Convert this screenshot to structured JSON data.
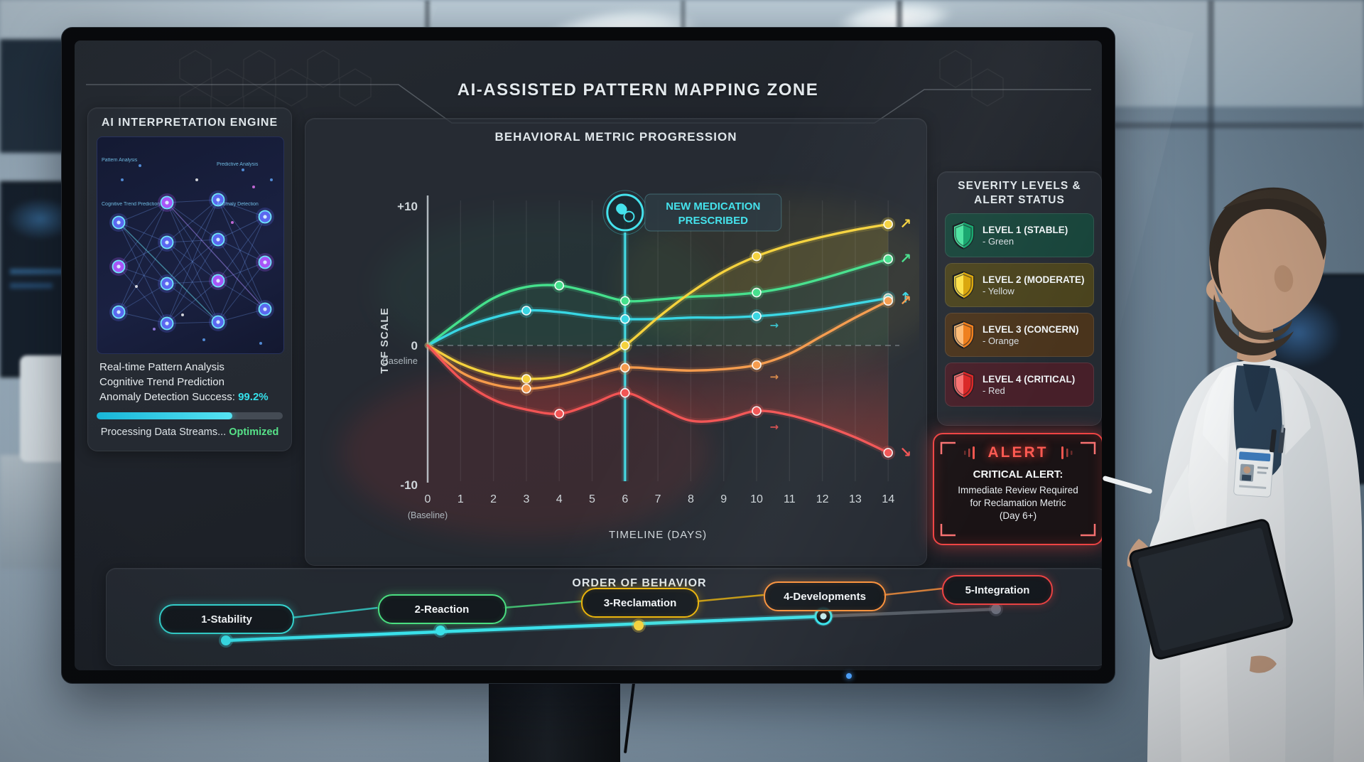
{
  "window": {
    "title": "AI-ASSISTED PATTERN MAPPING ZONE"
  },
  "left_panel": {
    "title": "AI INTERPRETATION ENGINE",
    "nn_labels": [
      "Pattern Analysis",
      "Cognitive Trend Prediction",
      "Predictive Analysis",
      "Anomaly Detection"
    ],
    "stats_lines": [
      "Real-time Pattern Analysis",
      "Cognitive Trend Prediction"
    ],
    "anomaly_label": "Anomaly Detection Success:",
    "anomaly_value": "99.2%",
    "progress_percent": 73,
    "processing_label": "Processing Data Streams...",
    "processing_status": "Optimized"
  },
  "chart_data": {
    "type": "line",
    "title": "BEHAVIORAL METRIC PROGRESSION",
    "xlabel": "TIMELINE (DAYS)",
    "ylabel": "TCF SCALE",
    "x": [
      0,
      1,
      2,
      3,
      4,
      5,
      6,
      7,
      8,
      9,
      10,
      11,
      12,
      13,
      14
    ],
    "x_first_tick_note": "(Baseline)",
    "ylim": [
      -10,
      10
    ],
    "yticks": [
      {
        "value": 10,
        "label": "+10"
      },
      {
        "value": 0,
        "label": "0",
        "sublabel": "Baseline"
      },
      {
        "value": -10,
        "label": "-10"
      }
    ],
    "baseline_style": "dashed",
    "grid": "vertical-daily",
    "legend_position": "none",
    "event_marker": {
      "x": 6,
      "icon": "pill-icon",
      "label_line1": "NEW MEDICATION",
      "label_line2": "PRESCRIBED",
      "color": "#45e2ec"
    },
    "series": [
      {
        "name": "reaction-green",
        "color": "#45e08c",
        "values": [
          0,
          1.8,
          3.4,
          4.2,
          4.3,
          3.8,
          3.2,
          3.3,
          3.5,
          3.6,
          3.8,
          4.2,
          4.8,
          5.5,
          6.2
        ],
        "marker_days": [
          4,
          6,
          10,
          14
        ],
        "end_arrow": "↗"
      },
      {
        "name": "stability-teal",
        "color": "#38d6e3",
        "values": [
          0,
          1.2,
          2.0,
          2.5,
          2.4,
          2.1,
          1.9,
          1.9,
          2.0,
          2.0,
          2.1,
          2.3,
          2.6,
          3.0,
          3.4
        ],
        "marker_days": [
          3,
          6,
          10,
          14
        ],
        "end_arrow": "↑"
      },
      {
        "name": "reclamation-yellow",
        "color": "#f5d23d",
        "values": [
          0,
          -1.3,
          -2.1,
          -2.4,
          -2.2,
          -1.3,
          0,
          2.0,
          3.8,
          5.3,
          6.4,
          7.2,
          7.8,
          8.3,
          8.7
        ],
        "marker_days": [
          3,
          6,
          10,
          14
        ],
        "end_arrow": "↗"
      },
      {
        "name": "developments-orange",
        "color": "#f59a4b",
        "values": [
          0,
          -1.9,
          -2.8,
          -3.1,
          -2.8,
          -2.2,
          -1.6,
          -1.7,
          -1.8,
          -1.7,
          -1.4,
          -0.6,
          0.7,
          2.0,
          3.2
        ],
        "marker_days": [
          3,
          6,
          10,
          14
        ],
        "end_arrow": "↗"
      },
      {
        "name": "integration-red",
        "color": "#f25454",
        "values": [
          0,
          -2.4,
          -3.9,
          -4.6,
          -4.9,
          -4.2,
          -3.4,
          -4.4,
          -5.4,
          -5.3,
          -4.7,
          -5.0,
          -5.7,
          -6.6,
          -7.7
        ],
        "marker_days": [
          4,
          6,
          10,
          14
        ],
        "end_arrow": "↘"
      }
    ],
    "mid_arrows": [
      {
        "x": 10.4,
        "y": 1.2,
        "glyph": "→",
        "color": "#38d6e3"
      },
      {
        "x": 10.4,
        "y": -2.5,
        "glyph": "→",
        "color": "#f59a4b"
      },
      {
        "x": 10.4,
        "y": -6.1,
        "glyph": "→",
        "color": "#f25454"
      }
    ]
  },
  "severity_panel": {
    "title_line1": "SEVERITY LEVELS &",
    "title_line2": "ALERT STATUS",
    "levels": [
      {
        "label": "LEVEL 1 (STABLE)",
        "sublabel": "- Green",
        "bg": "#17443a",
        "shield_light": "#4be3a0",
        "shield_dark": "#14a46c"
      },
      {
        "label": "LEVEL 2 (MODERATE)",
        "sublabel": "- Yellow",
        "bg": "#4a431d",
        "shield_light": "#fde047",
        "shield_dark": "#d9a509"
      },
      {
        "label": "LEVEL 3 (CONCERN)",
        "sublabel": "- Orange",
        "bg": "#4a341c",
        "shield_light": "#fdba74",
        "shield_dark": "#ef7d1a"
      },
      {
        "label": "LEVEL 4 (CRITICAL)",
        "sublabel": "- Red",
        "bg": "#471f29",
        "shield_light": "#f87171",
        "shield_dark": "#d92626"
      }
    ]
  },
  "alert": {
    "badge": "ALERT",
    "heading": "CRITICAL ALERT:",
    "lines": [
      "Immediate Review Required",
      "for Reclamation Metric",
      "(Day 6+)"
    ]
  },
  "order_panel": {
    "title": "ORDER OF BEHAVIOR",
    "stages": [
      {
        "label": "1-Stability",
        "color": "#35d4cf"
      },
      {
        "label": "2-Reaction",
        "color": "#4ade80"
      },
      {
        "label": "3-Reclamation",
        "color": "#eab308"
      },
      {
        "label": "4-Developments",
        "color": "#fb923c"
      },
      {
        "label": "5-Integration",
        "color": "#ef4444"
      }
    ],
    "current_stage": "4-Developments",
    "current_stage_index": 3
  }
}
